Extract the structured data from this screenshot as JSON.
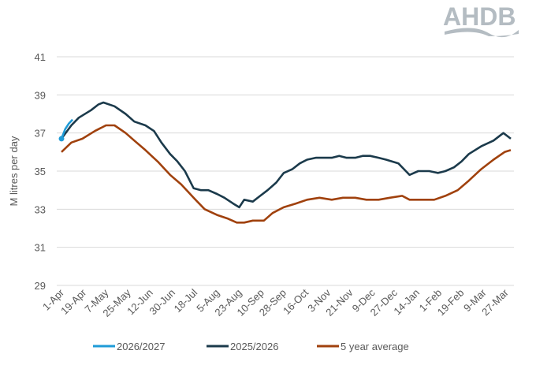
{
  "logo_text": "AHDB",
  "chart_data": {
    "type": "line",
    "title": "",
    "xlabel": "",
    "ylabel": "M litres per day",
    "ylim": [
      29,
      41
    ],
    "yticks": [
      29,
      31,
      33,
      35,
      37,
      39,
      41
    ],
    "xlim": [
      0,
      364
    ],
    "xtick_days": [
      0,
      18,
      36,
      54,
      72,
      90,
      108,
      126,
      144,
      162,
      180,
      198,
      216,
      234,
      252,
      270,
      288,
      306,
      324,
      342,
      360
    ],
    "xtick_labels": [
      "1-Apr",
      "19-Apr",
      "7-May",
      "25-May",
      "12-Jun",
      "30-Jun",
      "18-Jul",
      "5-Aug",
      "23-Aug",
      "10-Sep",
      "28-Sep",
      "16-Oct",
      "3-Nov",
      "21-Nov",
      "9-Dec",
      "27-Dec",
      "14-Jan",
      "1-Feb",
      "19-Feb",
      "9-Mar",
      "27-Mar"
    ],
    "grid": true,
    "legend_position": "bottom",
    "series": [
      {
        "name": "2026/2027",
        "color": "#1f9bd7",
        "x": [
          0,
          3,
          6,
          9
        ],
        "y": [
          36.7,
          37.2,
          37.5,
          37.7
        ]
      },
      {
        "name": "2025/2026",
        "color": "#1b3a4b",
        "x": [
          0,
          8,
          14,
          24,
          30,
          34,
          43,
          52,
          59,
          68,
          75,
          81,
          88,
          94,
          100,
          107,
          113,
          119,
          126,
          132,
          139,
          144,
          148,
          155,
          161,
          167,
          174,
          180,
          187,
          193,
          199,
          206,
          212,
          219,
          225,
          231,
          238,
          244,
          250,
          257,
          263,
          273,
          279,
          282,
          289,
          298,
          305,
          311,
          318,
          324,
          330,
          340,
          350,
          358,
          362,
          364
        ],
        "y": [
          36.7,
          37.4,
          37.8,
          38.2,
          38.5,
          38.6,
          38.4,
          38.0,
          37.6,
          37.4,
          37.1,
          36.5,
          35.9,
          35.5,
          35.0,
          34.1,
          34.0,
          34.0,
          33.8,
          33.6,
          33.3,
          33.1,
          33.5,
          33.4,
          33.7,
          34.0,
          34.4,
          34.9,
          35.1,
          35.4,
          35.6,
          35.7,
          35.7,
          35.7,
          35.8,
          35.7,
          35.7,
          35.8,
          35.8,
          35.7,
          35.6,
          35.4,
          35.0,
          34.8,
          35.0,
          35.0,
          34.9,
          35.0,
          35.2,
          35.5,
          35.9,
          36.3,
          36.6,
          37.0,
          36.8,
          36.7
        ]
      },
      {
        "name": "5 year average",
        "color": "#a0410d",
        "x": [
          0,
          8,
          17,
          27,
          36,
          43,
          52,
          59,
          68,
          78,
          88,
          97,
          107,
          116,
          126,
          135,
          142,
          148,
          155,
          164,
          171,
          180,
          190,
          199,
          209,
          219,
          228,
          238,
          247,
          257,
          266,
          276,
          282,
          292,
          302,
          311,
          321,
          330,
          340,
          350,
          359,
          364
        ],
        "y": [
          36.0,
          36.5,
          36.7,
          37.1,
          37.4,
          37.4,
          37.0,
          36.6,
          36.1,
          35.5,
          34.8,
          34.3,
          33.6,
          33.0,
          32.7,
          32.5,
          32.3,
          32.3,
          32.4,
          32.4,
          32.8,
          33.1,
          33.3,
          33.5,
          33.6,
          33.5,
          33.6,
          33.6,
          33.5,
          33.5,
          33.6,
          33.7,
          33.5,
          33.5,
          33.5,
          33.7,
          34.0,
          34.5,
          35.1,
          35.6,
          36.0,
          36.1
        ]
      }
    ]
  }
}
